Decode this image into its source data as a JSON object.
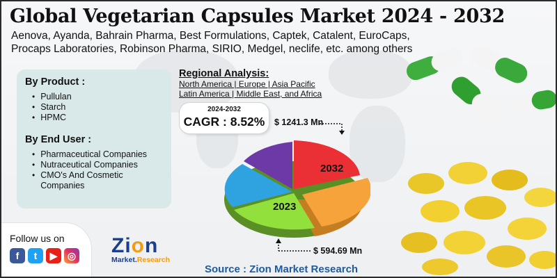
{
  "title": "Global Vegetarian Capsules Market 2024 - 2032",
  "subtitle": "Aenova, Ayanda, Bahrain Pharma, Best Formulations, Captek, Catalent, EuroCaps, Procaps Laboratories, Robinson Pharma, SIRIO, Medgel, neclife, etc. among others",
  "segments": {
    "product": {
      "title": "By Product :",
      "items": [
        "Pullulan",
        "Starch",
        "HPMC"
      ]
    },
    "end_user": {
      "title": "By End User :",
      "items": [
        "Pharmaceutical Companies",
        "Nutraceutical Companies",
        "CMO's And Cosmetic Companies"
      ]
    }
  },
  "regional": {
    "title": "Regional Analysis:",
    "line1": "North America | Europe | Asia Pacific",
    "line2": "Latin America | Middle East, and Africa"
  },
  "cagr": {
    "years": "2024-2032",
    "value": "CAGR : 8.52%"
  },
  "chart_data": {
    "type": "pie",
    "labels_on_slices": [
      "2032",
      "2023"
    ],
    "values_text": {
      "2032": "$ 1241.3 Mn",
      "2023": "$ 594.69 Mn"
    },
    "slice_colors": [
      "#ea2f35",
      "#f5a33a",
      "#92e03c",
      "#2fa3e0",
      "#6d39a7"
    ]
  },
  "follow": {
    "label": "Follow us on",
    "icons": [
      "facebook-icon",
      "twitter-icon",
      "youtube-icon",
      "instagram-icon"
    ]
  },
  "logo": {
    "word": "Zion",
    "sub_a": "Market",
    "sub_b": "Research"
  },
  "source": "Source : Zion Market Research"
}
